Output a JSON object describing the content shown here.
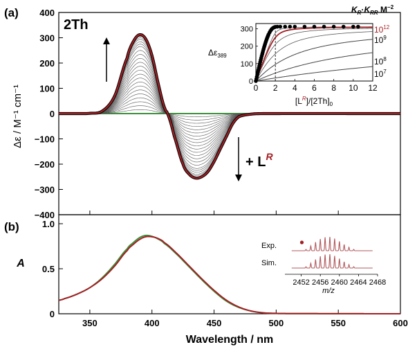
{
  "panel_a": {
    "label": "(a)",
    "compound": "2Th"
  },
  "panel_b": {
    "label": "(b)"
  },
  "annotations": {
    "addition_plus": "+ L",
    "addition_sup": "R"
  },
  "colors": {
    "final": "#a31f24",
    "initial": "#3a8f3a",
    "intermediate": "#555555",
    "envelope": "#000000"
  },
  "chart_data": [
    {
      "id": "cd-titration",
      "type": "line",
      "title": "",
      "xlabel": "",
      "ylabel": "Δε / M⁻¹ cm⁻¹",
      "xlim": [
        325,
        600
      ],
      "ylim": [
        -400,
        400
      ],
      "yticks": [
        400,
        300,
        200,
        100,
        0,
        -100,
        -200,
        -300,
        -400
      ],
      "xticks": [
        350,
        400,
        450,
        500,
        550,
        600
      ],
      "grid": false,
      "profile": {
        "x": [
          325,
          340,
          350,
          360,
          370,
          380,
          385,
          390,
          395,
          400,
          405,
          410,
          413,
          418,
          425,
          430,
          435,
          440,
          445,
          450,
          455,
          460,
          465,
          470,
          480,
          490,
          600
        ],
        "y": [
          0,
          0,
          1,
          10,
          70,
          220,
          285,
          312,
          295,
          230,
          120,
          25,
          -5,
          -90,
          -200,
          -240,
          -255,
          -250,
          -230,
          -190,
          -140,
          -90,
          -40,
          -12,
          -2,
          0,
          0
        ]
      },
      "intermediate_scales": [
        0.05,
        0.1,
        0.15,
        0.2,
        0.25,
        0.3,
        0.35,
        0.4,
        0.45,
        0.5,
        0.55,
        0.6,
        0.65,
        0.7,
        0.75,
        0.8,
        0.85,
        0.88,
        0.91,
        0.94,
        0.96,
        0.98
      ],
      "series": [
        {
          "name": "",
          "role": "initial (no ligand)",
          "color": "#3a8f3a",
          "scale": 0
        },
        {
          "name": "",
          "role": "final",
          "color": "#a31f24",
          "scale": 1
        }
      ]
    },
    {
      "id": "binding-isotherm-inset",
      "type": "line",
      "xlabel": "[L",
      "xlabel_sup": "R",
      "xlabel_tail": "]/[2Th]",
      "xlabel_sub": "0",
      "ylabel": "Δε",
      "ylabel_sub": "389",
      "xlim": [
        0,
        12
      ],
      "ylim": [
        0,
        330
      ],
      "xticks": [
        0,
        2,
        4,
        6,
        8,
        10,
        12
      ],
      "yticks": [
        0,
        100,
        200,
        300
      ],
      "equivalence_x": 2,
      "legend_title": {
        "k1": "K",
        "s1": "R",
        "dot": "·",
        "k2": "K",
        "s2": "RR",
        "unit": " M",
        "unit_sup": "−2"
      },
      "model_series": [
        {
          "label": "10",
          "exp": "12",
          "k": 1000000000000,
          "color": "#a31f24"
        },
        {
          "label": "10",
          "exp": "9",
          "k": 1000000000,
          "color": "#444444"
        },
        {
          "label": "10",
          "exp": "8",
          "k": 100000000,
          "color": "#444444"
        },
        {
          "label": "10",
          "exp": "7",
          "k": 10000000,
          "color": "#444444"
        }
      ],
      "extra_model_k": [
        10000000000000,
        100000000000,
        10000000000
      ],
      "experimental_points": {
        "x": [
          0,
          0.05,
          0.1,
          0.15,
          0.2,
          0.25,
          0.3,
          0.35,
          0.4,
          0.45,
          0.5,
          0.55,
          0.6,
          0.65,
          0.7,
          0.75,
          0.8,
          0.85,
          0.9,
          0.95,
          1.0,
          1.05,
          1.1,
          1.15,
          1.2,
          1.25,
          1.3,
          1.4,
          1.5,
          1.6,
          1.7,
          1.8,
          1.9,
          2.0,
          2.2,
          2.5,
          3.0,
          3.5,
          4.0,
          5.0,
          6.0,
          7.0,
          8.0,
          9.0,
          10.0,
          10.5
        ],
        "y": [
          0,
          12,
          25,
          38,
          50,
          62,
          74,
          86,
          98,
          110,
          121,
          132,
          143,
          154,
          164,
          175,
          185,
          195,
          204,
          213,
          222,
          230,
          238,
          246,
          253,
          260,
          267,
          278,
          288,
          296,
          302,
          306,
          309,
          311,
          312,
          312,
          312,
          312,
          312,
          312,
          312,
          312,
          312,
          312,
          312,
          312
        ]
      }
    },
    {
      "id": "uv-vis",
      "type": "line",
      "xlabel": "Wavelength / nm",
      "ylabel": "A",
      "xlim": [
        325,
        600
      ],
      "ylim": [
        0,
        1.1
      ],
      "xticks": [
        350,
        400,
        450,
        500,
        550,
        600
      ],
      "yticks": [
        0,
        0.5,
        1.0
      ],
      "ytick_labels": [
        "0",
        "0.5",
        "1.0"
      ],
      "series": [
        {
          "name": "",
          "role": "initial",
          "color": "#3a8f3a",
          "x": [
            325,
            330,
            340,
            350,
            360,
            370,
            380,
            385,
            390,
            395,
            400,
            405,
            410,
            420,
            430,
            440,
            450,
            460,
            470,
            480,
            490,
            500,
            510,
            600
          ],
          "y": [
            0.15,
            0.17,
            0.22,
            0.29,
            0.4,
            0.55,
            0.72,
            0.79,
            0.845,
            0.87,
            0.86,
            0.83,
            0.78,
            0.66,
            0.52,
            0.38,
            0.25,
            0.14,
            0.07,
            0.03,
            0.01,
            0.004,
            0.002,
            0
          ]
        },
        {
          "name": "",
          "role": "final",
          "color": "#a31f24",
          "x": [
            325,
            330,
            340,
            350,
            360,
            370,
            380,
            385,
            390,
            395,
            400,
            405,
            410,
            420,
            430,
            440,
            450,
            460,
            470,
            480,
            490,
            500,
            510,
            600
          ],
          "y": [
            0.15,
            0.17,
            0.22,
            0.29,
            0.39,
            0.53,
            0.7,
            0.77,
            0.825,
            0.855,
            0.855,
            0.835,
            0.79,
            0.67,
            0.53,
            0.39,
            0.26,
            0.15,
            0.075,
            0.03,
            0.01,
            0.004,
            0.002,
            0
          ]
        }
      ]
    },
    {
      "id": "mass-spectrum-inset",
      "type": "line",
      "xlabel": "m/z",
      "xlim": [
        2448,
        2468
      ],
      "xticks": [
        2452,
        2456,
        2460,
        2464,
        2468
      ],
      "rows": [
        {
          "label": "Exp.",
          "color": "#b25a5e",
          "marker_mz": 2453
        },
        {
          "label": "Sim.",
          "color": "#b25a5e"
        }
      ],
      "peaks_mz": [
        2453,
        2454,
        2455,
        2456,
        2457,
        2458,
        2459,
        2460,
        2461,
        2462,
        2463
      ],
      "peaks_rel": [
        0.1,
        0.35,
        0.62,
        0.85,
        0.97,
        1.0,
        0.88,
        0.68,
        0.45,
        0.25,
        0.1
      ]
    }
  ]
}
